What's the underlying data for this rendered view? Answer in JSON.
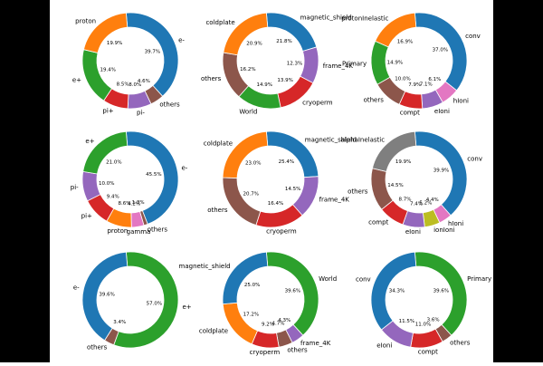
{
  "chart_data": [
    {
      "type": "donut",
      "wedges": [
        {
          "label": "e-",
          "value": 39.7,
          "pct": "39.7%",
          "color": "#1f77b4"
        },
        {
          "label": "others",
          "value": 4.6,
          "pct": "4.6%",
          "color": "#8c564b"
        },
        {
          "label": "pi-",
          "value": 8.0,
          "pct": "8.0%",
          "color": "#9467bd"
        },
        {
          "label": "pi+",
          "value": 8.5,
          "pct": "8.5%",
          "color": "#d62728"
        },
        {
          "label": "e+",
          "value": 19.4,
          "pct": "19.4%",
          "color": "#2ca02c"
        },
        {
          "label": "proton",
          "value": 19.9,
          "pct": "19.9%",
          "color": "#ff7f0e"
        }
      ]
    },
    {
      "type": "donut",
      "wedges": [
        {
          "label": "magnetic_shield",
          "value": 21.8,
          "pct": "21.8%",
          "color": "#1f77b4"
        },
        {
          "label": "frame_4K",
          "value": 12.3,
          "pct": "12.3%",
          "color": "#9467bd"
        },
        {
          "label": "cryoperm",
          "value": 13.9,
          "pct": "13.9%",
          "color": "#d62728"
        },
        {
          "label": "World",
          "value": 14.9,
          "pct": "14.9%",
          "color": "#2ca02c"
        },
        {
          "label": "others",
          "value": 16.2,
          "pct": "16.2%",
          "color": "#8c564b"
        },
        {
          "label": "coldplate",
          "value": 20.9,
          "pct": "20.9%",
          "color": "#ff7f0e"
        }
      ]
    },
    {
      "type": "donut",
      "wedges": [
        {
          "label": "conv",
          "value": 37.0,
          "pct": "37.0%",
          "color": "#1f77b4"
        },
        {
          "label": "hIoni",
          "value": 6.1,
          "pct": "6.1%",
          "color": "#e377c2"
        },
        {
          "label": "eIoni",
          "value": 7.1,
          "pct": "7.1%",
          "color": "#9467bd"
        },
        {
          "label": "compt",
          "value": 7.9,
          "pct": "7.9%",
          "color": "#d62728"
        },
        {
          "label": "others",
          "value": 10.0,
          "pct": "10.0%",
          "color": "#8c564b"
        },
        {
          "label": "Primary",
          "value": 14.9,
          "pct": "14.9%",
          "color": "#2ca02c"
        },
        {
          "label": "protonInelastic",
          "value": 16.9,
          "pct": "16.9%",
          "color": "#ff7f0e"
        }
      ]
    },
    {
      "type": "donut",
      "wedges": [
        {
          "label": "e-",
          "value": 45.5,
          "pct": "45.5%",
          "color": "#1f77b4"
        },
        {
          "label": "others",
          "value": 1.3,
          "pct": "1.3%",
          "color": "#8c564b"
        },
        {
          "label": "gamma",
          "value": 4.2,
          "pct": "4.2%",
          "color": "#e377c2"
        },
        {
          "label": "proton",
          "value": 8.6,
          "pct": "8.6%",
          "color": "#ff7f0e"
        },
        {
          "label": "pi+",
          "value": 9.4,
          "pct": "9.4%",
          "color": "#d62728"
        },
        {
          "label": "pi-",
          "value": 10.0,
          "pct": "10.0%",
          "color": "#9467bd"
        },
        {
          "label": "e+",
          "value": 21.0,
          "pct": "21.0%",
          "color": "#2ca02c"
        }
      ]
    },
    {
      "type": "donut",
      "wedges": [
        {
          "label": "magnetic_shield",
          "value": 25.4,
          "pct": "25.4%",
          "color": "#1f77b4"
        },
        {
          "label": "frame_4K",
          "value": 14.5,
          "pct": "14.5%",
          "color": "#9467bd"
        },
        {
          "label": "cryoperm",
          "value": 16.4,
          "pct": "16.4%",
          "color": "#d62728"
        },
        {
          "label": "others",
          "value": 20.7,
          "pct": "20.7%",
          "color": "#8c564b"
        },
        {
          "label": "coldplate",
          "value": 23.0,
          "pct": "23.0%",
          "color": "#ff7f0e"
        }
      ]
    },
    {
      "type": "donut",
      "wedges": [
        {
          "label": "conv",
          "value": 39.9,
          "pct": "39.9%",
          "color": "#1f77b4"
        },
        {
          "label": "hIoni",
          "value": 4.4,
          "pct": "4.4%",
          "color": "#e377c2"
        },
        {
          "label": "ionIoni",
          "value": 5.2,
          "pct": "5.2%",
          "color": "#bcbd22"
        },
        {
          "label": "eIoni",
          "value": 7.4,
          "pct": "7.4%",
          "color": "#9467bd"
        },
        {
          "label": "compt",
          "value": 8.7,
          "pct": "8.7%",
          "color": "#d62728"
        },
        {
          "label": "others",
          "value": 14.5,
          "pct": "14.5%",
          "color": "#8c564b"
        },
        {
          "label": "alphaInelastic",
          "value": 19.9,
          "pct": "19.9%",
          "color": "#7f7f7f"
        }
      ]
    },
    {
      "type": "donut",
      "wedges": [
        {
          "label": "e+",
          "value": 57.0,
          "pct": "57.0%",
          "color": "#2ca02c"
        },
        {
          "label": "others",
          "value": 3.4,
          "pct": "3.4%",
          "color": "#8c564b"
        },
        {
          "label": "e-",
          "value": 39.6,
          "pct": "39.6%",
          "color": "#1f77b4"
        }
      ]
    },
    {
      "type": "donut",
      "wedges": [
        {
          "label": "World",
          "value": 39.6,
          "pct": "39.6%",
          "color": "#2ca02c"
        },
        {
          "label": "frame_4K",
          "value": 4.3,
          "pct": "4.3%",
          "color": "#9467bd"
        },
        {
          "label": "others",
          "value": 4.7,
          "pct": "4.7%",
          "color": "#8c564b"
        },
        {
          "label": "cryoperm",
          "value": 9.2,
          "pct": "9.2%",
          "color": "#d62728"
        },
        {
          "label": "coldplate",
          "value": 17.2,
          "pct": "17.2%",
          "color": "#ff7f0e"
        },
        {
          "label": "magnetic_shield",
          "value": 25.0,
          "pct": "25.0%",
          "color": "#1f77b4"
        }
      ]
    },
    {
      "type": "donut",
      "wedges": [
        {
          "label": "Primary",
          "value": 39.6,
          "pct": "39.6%",
          "color": "#2ca02c"
        },
        {
          "label": "others",
          "value": 3.6,
          "pct": "3.6%",
          "color": "#8c564b"
        },
        {
          "label": "compt",
          "value": 11.0,
          "pct": "11.0%",
          "color": "#d62728"
        },
        {
          "label": "eIoni",
          "value": 11.5,
          "pct": "11.5%",
          "color": "#9467bd"
        },
        {
          "label": "conv",
          "value": 34.3,
          "pct": "34.3%",
          "color": "#1f77b4"
        }
      ]
    }
  ]
}
